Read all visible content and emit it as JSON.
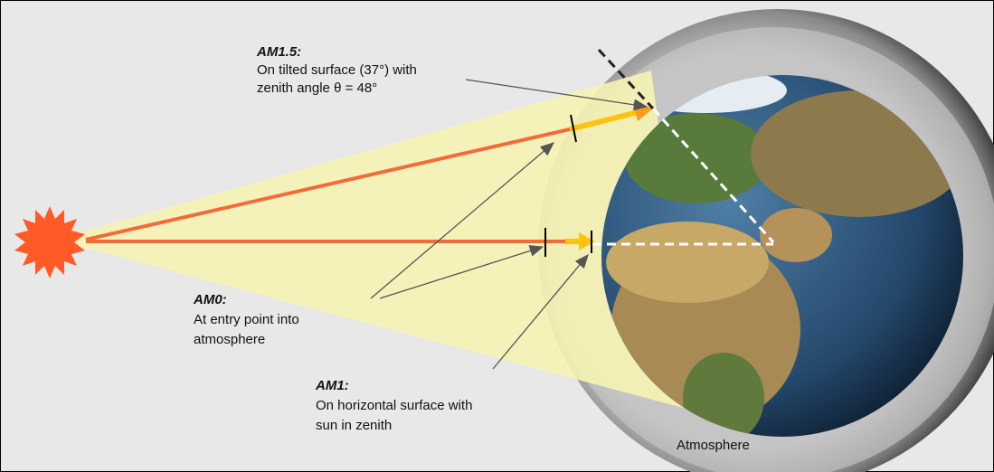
{
  "labels": [
    {
      "title": "AM1.5:",
      "lines": [
        "On tilted surface (37°) with",
        "zenith angle θ = 48°"
      ]
    },
    {
      "title": "AM0:",
      "lines": [
        "At entry point into",
        "atmosphere"
      ]
    },
    {
      "title": "AM1:",
      "lines": [
        "On horizontal surface with",
        "sun in zenith"
      ]
    }
  ],
  "atmosphere_label": "Atmosphere"
}
